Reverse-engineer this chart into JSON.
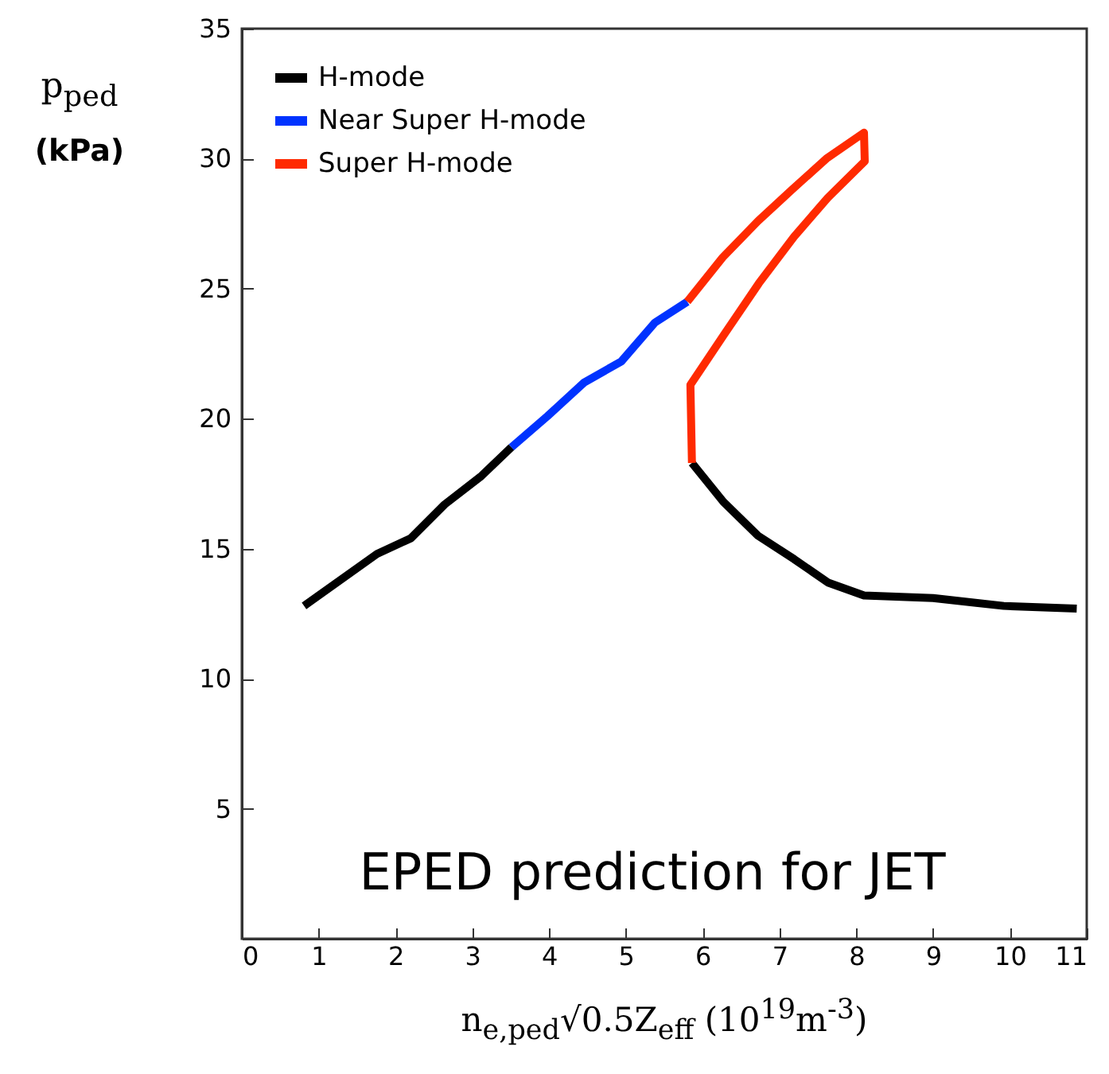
{
  "chart_data": {
    "type": "line",
    "xlabel": "n$_{e,ped}$√0.5Z$_{eff}$ (10$^{19}$m$^{-3}$)",
    "ylabel": "p$_{ped}$ (kPa)",
    "annotations": [
      "EPED prediction for JET"
    ],
    "xlim": [
      0,
      11
    ],
    "xticks": [
      0,
      1,
      2,
      3,
      4,
      5,
      6,
      7,
      8,
      9,
      10,
      11
    ],
    "ylim": [
      0,
      35
    ],
    "yticks": [
      5,
      10,
      15,
      20,
      25,
      30,
      35
    ],
    "grid": false,
    "legend": "top left",
    "line_style": "solid",
    "series": [
      {
        "name": "H-mode",
        "color": "#000000",
        "x": [
          0.81,
          1.76,
          2.2,
          2.64,
          3.12,
          3.51,
          4.7,
          5.86,
          6.27,
          6.72,
          7.19,
          7.63,
          8.1,
          9.0,
          9.92,
          10.87
        ],
        "values": [
          12.8,
          14.8,
          15.4,
          16.7,
          17.8,
          18.9,
          null,
          18.3,
          16.8,
          15.5,
          14.6,
          13.7,
          13.2,
          13.1,
          12.8,
          12.7
        ]
      },
      {
        "name": "Near Super H-mode",
        "color": "#0033ff",
        "x": [
          3.51,
          3.98,
          4.46,
          4.94,
          5.38,
          5.8
        ],
        "values": [
          18.9,
          20.1,
          21.4,
          22.2,
          23.7,
          24.5
        ]
      },
      {
        "name": "Super H-mode",
        "color": "#ff2a00",
        "x": [
          5.8,
          6.26,
          6.72,
          7.16,
          7.61,
          8.1,
          8.11,
          7.63,
          7.19,
          6.73,
          6.27,
          5.84,
          5.86
        ],
        "values": [
          24.5,
          26.2,
          27.6,
          28.8,
          30.0,
          31.0,
          29.9,
          28.5,
          27.0,
          25.2,
          23.2,
          21.3,
          18.3
        ]
      }
    ]
  }
}
